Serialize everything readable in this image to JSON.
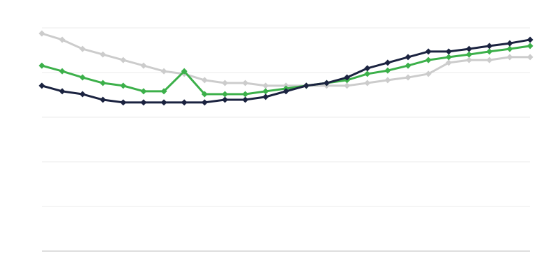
{
  "chart_data": {
    "type": "line",
    "title": "",
    "xlabel": "",
    "ylabel": "",
    "ylim": [
      0,
      100
    ],
    "grid": true,
    "grid_step": 20,
    "x": [
      1,
      2,
      3,
      4,
      5,
      6,
      7,
      8,
      9,
      10,
      11,
      12,
      13,
      14,
      15,
      16,
      17,
      18,
      19,
      20,
      21,
      22,
      23,
      24,
      25
    ],
    "series": [
      {
        "color": "#cccccc",
        "values": [
          97.5,
          94.7,
          90.6,
          88.1,
          85.6,
          83.1,
          80.6,
          79.4,
          76.6,
          75.3,
          75.3,
          74.1,
          74.1,
          74.1,
          74.1,
          74.1,
          75.3,
          76.6,
          77.8,
          79.4,
          84.4,
          85.6,
          85.6,
          86.9,
          86.9
        ]
      },
      {
        "color": "#3cb04a",
        "values": [
          83.1,
          80.6,
          77.8,
          75.3,
          74.1,
          71.6,
          71.6,
          80.6,
          70.3,
          70.3,
          70.3,
          71.6,
          72.8,
          74.1,
          75.3,
          76.6,
          79.4,
          80.9,
          83.1,
          85.6,
          86.9,
          88.1,
          89.4,
          90.6,
          91.9
        ]
      },
      {
        "color": "#1b2340",
        "values": [
          74.1,
          71.6,
          70.3,
          67.8,
          66.6,
          66.6,
          66.6,
          66.6,
          66.6,
          67.8,
          67.8,
          69.1,
          71.6,
          74.1,
          75.3,
          77.8,
          81.9,
          84.4,
          86.9,
          89.4,
          89.4,
          90.6,
          91.9,
          93.1,
          94.7
        ]
      }
    ]
  }
}
